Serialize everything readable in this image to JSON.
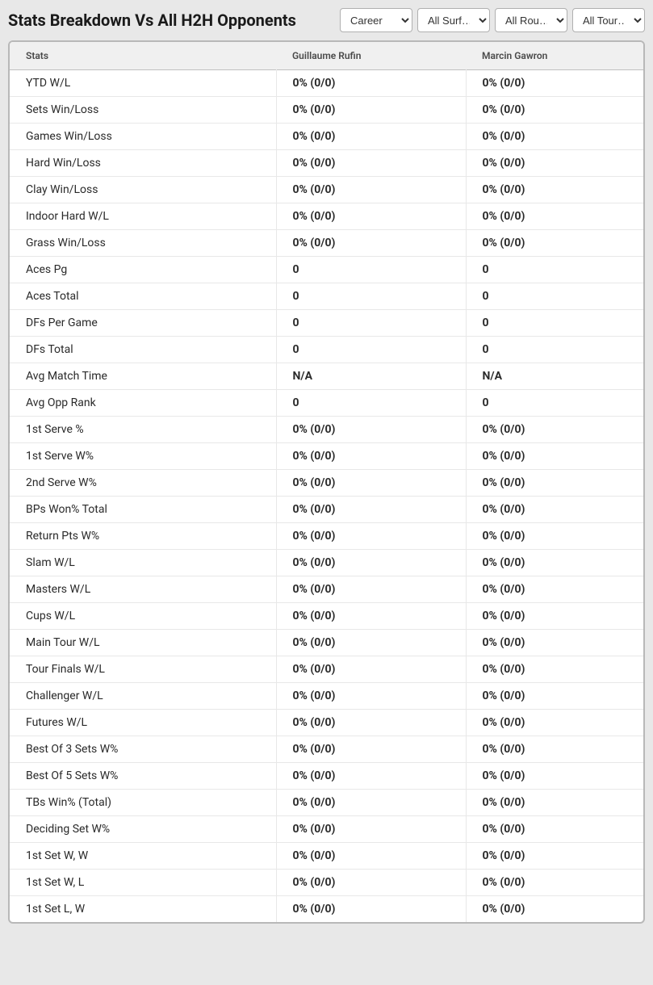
{
  "header": {
    "title": "Stats Breakdown Vs All H2H Opponents"
  },
  "filters": {
    "career": "Career",
    "surface": "All Surf…",
    "rounds": "All Rou…",
    "tours": "All Tour…"
  },
  "table": {
    "columns": {
      "stats": "Stats",
      "player1": "Guillaume Rufin",
      "player2": "Marcin Gawron"
    },
    "rows": [
      {
        "stat": "YTD W/L",
        "p1": "0% (0/0)",
        "p2": "0% (0/0)"
      },
      {
        "stat": "Sets Win/Loss",
        "p1": "0% (0/0)",
        "p2": "0% (0/0)"
      },
      {
        "stat": "Games Win/Loss",
        "p1": "0% (0/0)",
        "p2": "0% (0/0)"
      },
      {
        "stat": "Hard Win/Loss",
        "p1": "0% (0/0)",
        "p2": "0% (0/0)"
      },
      {
        "stat": "Clay Win/Loss",
        "p1": "0% (0/0)",
        "p2": "0% (0/0)"
      },
      {
        "stat": "Indoor Hard W/L",
        "p1": "0% (0/0)",
        "p2": "0% (0/0)"
      },
      {
        "stat": "Grass Win/Loss",
        "p1": "0% (0/0)",
        "p2": "0% (0/0)"
      },
      {
        "stat": "Aces Pg",
        "p1": "0",
        "p2": "0"
      },
      {
        "stat": "Aces Total",
        "p1": "0",
        "p2": "0"
      },
      {
        "stat": "DFs Per Game",
        "p1": "0",
        "p2": "0"
      },
      {
        "stat": "DFs Total",
        "p1": "0",
        "p2": "0"
      },
      {
        "stat": "Avg Match Time",
        "p1": "N/A",
        "p2": "N/A"
      },
      {
        "stat": "Avg Opp Rank",
        "p1": "0",
        "p2": "0"
      },
      {
        "stat": "1st Serve %",
        "p1": "0% (0/0)",
        "p2": "0% (0/0)"
      },
      {
        "stat": "1st Serve W%",
        "p1": "0% (0/0)",
        "p2": "0% (0/0)"
      },
      {
        "stat": "2nd Serve W%",
        "p1": "0% (0/0)",
        "p2": "0% (0/0)"
      },
      {
        "stat": "BPs Won% Total",
        "p1": "0% (0/0)",
        "p2": "0% (0/0)"
      },
      {
        "stat": "Return Pts W%",
        "p1": "0% (0/0)",
        "p2": "0% (0/0)"
      },
      {
        "stat": "Slam W/L",
        "p1": "0% (0/0)",
        "p2": "0% (0/0)"
      },
      {
        "stat": "Masters W/L",
        "p1": "0% (0/0)",
        "p2": "0% (0/0)"
      },
      {
        "stat": "Cups W/L",
        "p1": "0% (0/0)",
        "p2": "0% (0/0)"
      },
      {
        "stat": "Main Tour W/L",
        "p1": "0% (0/0)",
        "p2": "0% (0/0)"
      },
      {
        "stat": "Tour Finals W/L",
        "p1": "0% (0/0)",
        "p2": "0% (0/0)"
      },
      {
        "stat": "Challenger W/L",
        "p1": "0% (0/0)",
        "p2": "0% (0/0)"
      },
      {
        "stat": "Futures W/L",
        "p1": "0% (0/0)",
        "p2": "0% (0/0)"
      },
      {
        "stat": "Best Of 3 Sets W%",
        "p1": "0% (0/0)",
        "p2": "0% (0/0)"
      },
      {
        "stat": "Best Of 5 Sets W%",
        "p1": "0% (0/0)",
        "p2": "0% (0/0)"
      },
      {
        "stat": "TBs Win% (Total)",
        "p1": "0% (0/0)",
        "p2": "0% (0/0)"
      },
      {
        "stat": "Deciding Set W%",
        "p1": "0% (0/0)",
        "p2": "0% (0/0)"
      },
      {
        "stat": "1st Set W, W",
        "p1": "0% (0/0)",
        "p2": "0% (0/0)"
      },
      {
        "stat": "1st Set W, L",
        "p1": "0% (0/0)",
        "p2": "0% (0/0)"
      },
      {
        "stat": "1st Set L, W",
        "p1": "0% (0/0)",
        "p2": "0% (0/0)"
      }
    ]
  },
  "colors": {
    "background": "#e8e8e8",
    "table_bg": "#ffffff",
    "header_bg": "#f0f0f0",
    "border": "#b8b8b8",
    "row_border": "#e8e8e8",
    "text": "#2a2a2a"
  }
}
